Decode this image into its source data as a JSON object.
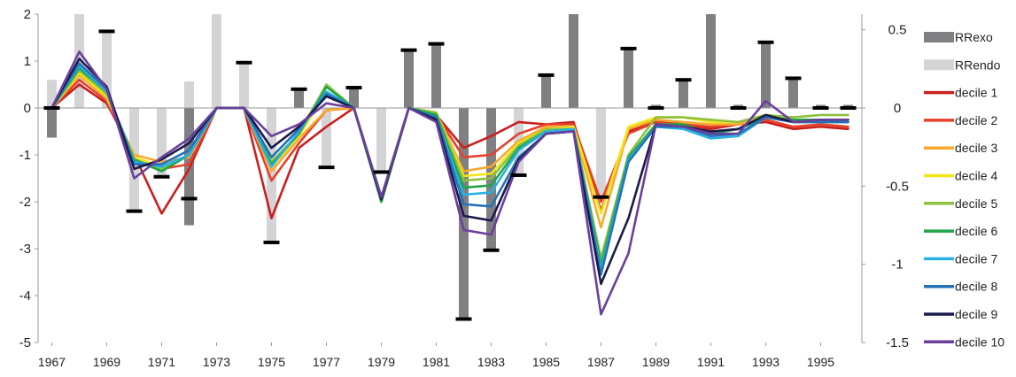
{
  "chart_data": {
    "type": "line",
    "x_categories": [
      "1967",
      "1968",
      "1969",
      "1970",
      "1971",
      "1972",
      "1973",
      "1974",
      "1975",
      "1976",
      "1977",
      "1978",
      "1979",
      "1980",
      "1981",
      "1982",
      "1983",
      "1984",
      "1985",
      "1986",
      "1987",
      "1988",
      "1989",
      "1990",
      "1991",
      "1992",
      "1993",
      "1994",
      "1995",
      "1996"
    ],
    "x_tick_labels": [
      "1967",
      "1969",
      "1971",
      "1973",
      "1975",
      "1977",
      "1979",
      "1981",
      "1983",
      "1985",
      "1987",
      "1989",
      "1991",
      "1993",
      "1995"
    ],
    "left_axis": {
      "min": -5,
      "max": 2,
      "ticks": [
        "-5",
        "-4",
        "-3",
        "-2",
        "-1",
        "0",
        "1",
        "2"
      ]
    },
    "right_axis": {
      "min": -1.5,
      "max": 0.6,
      "ticks": [
        "-1.5",
        "-1",
        "-0.5",
        "0",
        "0.5"
      ]
    },
    "bar_series": [
      {
        "name": "RRexo",
        "axis": "right",
        "color": "#808083",
        "values": [
          -0.19,
          null,
          null,
          null,
          null,
          -0.75,
          null,
          null,
          null,
          0.12,
          null,
          0.13,
          null,
          0.37,
          0.41,
          -1.35,
          -0.91,
          null,
          0.21,
          0.6,
          null,
          0.38,
          0.02,
          0.18,
          0.6,
          0.02,
          0.42,
          0.19,
          0.02,
          0.02
        ]
      },
      {
        "name": "RRendo",
        "axis": "right",
        "color": "#d4d4d6",
        "values": [
          0.18,
          0.6,
          0.48,
          -0.66,
          -0.44,
          0.17,
          0.6,
          0.29,
          -0.86,
          null,
          -0.38,
          null,
          -0.41,
          null,
          null,
          null,
          null,
          -0.43,
          null,
          null,
          -0.57,
          null,
          null,
          null,
          null,
          null,
          null,
          null,
          null,
          null
        ]
      }
    ],
    "bar_markers": {
      "axis": "right",
      "values": [
        0.0,
        null,
        0.49,
        -0.66,
        -0.44,
        -0.58,
        null,
        0.29,
        -0.86,
        0.12,
        -0.38,
        0.13,
        -0.41,
        0.37,
        0.41,
        -1.35,
        -0.91,
        -0.43,
        0.21,
        null,
        -0.57,
        0.38,
        0.0,
        0.18,
        null,
        0.0,
        0.42,
        0.19,
        0.0,
        0.0
      ]
    },
    "line_series": [
      {
        "name": "decile 1",
        "color": "#c8201e",
        "values": [
          0,
          0.5,
          0.1,
          -1.0,
          -2.25,
          -1.3,
          0,
          0,
          -2.35,
          -0.85,
          -0.4,
          0,
          -1.9,
          0,
          -0.15,
          -0.85,
          -0.6,
          -0.3,
          -0.35,
          -0.3,
          -2.2,
          -0.5,
          -0.3,
          -0.35,
          -0.45,
          -0.35,
          -0.3,
          -0.45,
          -0.4,
          -0.45
        ]
      },
      {
        "name": "decile 2",
        "color": "#e6402b",
        "values": [
          0,
          0.6,
          0.15,
          -1.05,
          -1.3,
          -1.2,
          0,
          0,
          -1.55,
          -0.75,
          -0.05,
          0,
          -1.95,
          0,
          -0.15,
          -1.05,
          -1.0,
          -0.55,
          -0.35,
          -0.35,
          -2.0,
          -0.55,
          -0.3,
          -0.35,
          -0.4,
          -0.35,
          -0.25,
          -0.4,
          -0.35,
          -0.4
        ]
      },
      {
        "name": "decile 3",
        "color": "#f8a92c",
        "values": [
          0,
          0.7,
          0.2,
          -1.0,
          -1.15,
          -1.05,
          0,
          0,
          -1.35,
          -0.65,
          -0.05,
          0,
          -2.0,
          0,
          -0.1,
          -1.35,
          -1.25,
          -0.7,
          -0.4,
          -0.4,
          -2.55,
          -0.45,
          -0.25,
          -0.3,
          -0.35,
          -0.35,
          -0.2,
          -0.3,
          -0.3,
          -0.3
        ]
      },
      {
        "name": "decile 4",
        "color": "#f2e61b",
        "values": [
          0,
          0.75,
          0.25,
          -1.05,
          -1.25,
          -1.0,
          0,
          0,
          -1.25,
          -0.6,
          0.35,
          0,
          -2.0,
          0,
          -0.1,
          -1.45,
          -1.4,
          -0.75,
          -0.45,
          -0.4,
          -2.25,
          -0.4,
          -0.2,
          -0.2,
          -0.3,
          -0.3,
          -0.15,
          -0.25,
          -0.25,
          -0.25
        ]
      },
      {
        "name": "decile 5",
        "color": "#8cc13f",
        "values": [
          0,
          0.8,
          0.3,
          -1.1,
          -1.3,
          -1.0,
          0,
          0,
          -1.15,
          -0.55,
          0.5,
          0,
          -2.0,
          0,
          -0.1,
          -1.55,
          -1.5,
          -0.8,
          -0.45,
          -0.45,
          -3.2,
          -1.0,
          -0.2,
          -0.2,
          -0.25,
          -0.3,
          -0.15,
          -0.2,
          -0.15,
          -0.15
        ]
      },
      {
        "name": "decile 6",
        "color": "#21a54a",
        "values": [
          0,
          0.85,
          0.35,
          -1.1,
          -1.35,
          -1.0,
          0,
          0,
          -1.2,
          -0.55,
          0.45,
          0,
          -2.0,
          0,
          -0.15,
          -1.7,
          -1.65,
          -0.85,
          -0.5,
          -0.45,
          -3.35,
          -1.05,
          -0.35,
          -0.35,
          -0.55,
          -0.45,
          -0.2,
          -0.25,
          -0.25,
          -0.25
        ]
      },
      {
        "name": "decile 7",
        "color": "#29b0e4",
        "values": [
          0,
          0.9,
          0.35,
          -1.15,
          -1.25,
          -1.0,
          0,
          0,
          -1.25,
          -0.5,
          0.35,
          0,
          -1.95,
          0,
          -0.2,
          -1.85,
          -1.8,
          -0.9,
          -0.5,
          -0.45,
          -3.45,
          -1.1,
          -0.4,
          -0.45,
          -0.65,
          -0.6,
          -0.2,
          -0.3,
          -0.3,
          -0.3
        ]
      },
      {
        "name": "decile 8",
        "color": "#2373b8",
        "values": [
          0,
          0.95,
          0.4,
          -1.2,
          -1.2,
          -0.9,
          0,
          0,
          -1.05,
          -0.45,
          0.3,
          0,
          -1.9,
          0,
          -0.2,
          -2.05,
          -2.1,
          -1.05,
          -0.55,
          -0.5,
          -3.55,
          -1.15,
          -0.4,
          -0.4,
          -0.6,
          -0.55,
          -0.2,
          -0.3,
          -0.3,
          -0.3
        ]
      },
      {
        "name": "decile 9",
        "color": "#1b1b4b",
        "values": [
          0,
          1.05,
          0.45,
          -1.3,
          -1.1,
          -0.75,
          0,
          0,
          -0.85,
          -0.4,
          0.25,
          0,
          -1.95,
          0,
          -0.25,
          -2.3,
          -2.4,
          -1.1,
          -0.55,
          -0.5,
          -3.75,
          -2.35,
          -0.35,
          -0.4,
          -0.5,
          -0.45,
          -0.15,
          -0.3,
          -0.25,
          -0.25
        ]
      },
      {
        "name": "decile 10",
        "color": "#6a409c",
        "values": [
          0,
          1.2,
          0.4,
          -1.5,
          -1.05,
          -0.65,
          0,
          0,
          -0.6,
          -0.35,
          0.1,
          0,
          -1.9,
          0,
          -0.3,
          -2.6,
          -2.7,
          -1.15,
          -0.55,
          -0.5,
          -4.4,
          -3.1,
          -0.35,
          -0.4,
          -0.55,
          -0.55,
          0.15,
          -0.3,
          -0.25,
          -0.25
        ]
      }
    ],
    "legend": {
      "position": "right",
      "entries": [
        {
          "label": "RRexo",
          "kind": "bar",
          "color": "#808083"
        },
        {
          "label": "RRendo",
          "kind": "bar",
          "color": "#d4d4d6"
        },
        {
          "label": "decile 1",
          "kind": "line",
          "color": "#c8201e"
        },
        {
          "label": "decile 2",
          "kind": "line",
          "color": "#e6402b"
        },
        {
          "label": "decile 3",
          "kind": "line",
          "color": "#f8a92c"
        },
        {
          "label": "decile 4",
          "kind": "line",
          "color": "#f2e61b"
        },
        {
          "label": "decile 5",
          "kind": "line",
          "color": "#8cc13f"
        },
        {
          "label": "decile 6",
          "kind": "line",
          "color": "#21a54a"
        },
        {
          "label": "decile 7",
          "kind": "line",
          "color": "#29b0e4"
        },
        {
          "label": "decile 8",
          "kind": "line",
          "color": "#2373b8"
        },
        {
          "label": "decile 9",
          "kind": "line",
          "color": "#1b1b4b"
        },
        {
          "label": "decile 10",
          "kind": "line",
          "color": "#6a409c"
        }
      ]
    },
    "grid": false
  }
}
